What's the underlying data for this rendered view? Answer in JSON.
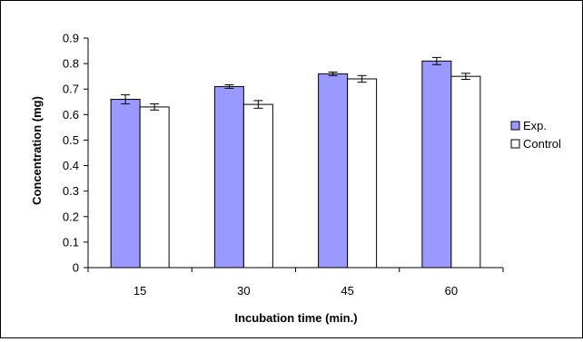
{
  "chart_data": {
    "type": "bar",
    "title": "",
    "xlabel": "Incubation time (min.)",
    "ylabel": "Concentration (mg)",
    "categories": [
      "15",
      "30",
      "45",
      "60"
    ],
    "ylim": [
      0,
      0.9
    ],
    "yticks": [
      0,
      0.1,
      0.2,
      0.3,
      0.4,
      0.5,
      0.6,
      0.7,
      0.8,
      0.9
    ],
    "ytick_labels": [
      "0",
      "0.1",
      "0.2",
      "0.3",
      "0.4",
      "0.5",
      "0.6",
      "0.7",
      "0.8",
      "0.9"
    ],
    "grid": false,
    "legend_position": "right",
    "error_bars": true,
    "series": [
      {
        "name": "Exp.",
        "color": "#9999ff",
        "values": [
          0.66,
          0.71,
          0.76,
          0.81
        ],
        "errors": [
          0.018,
          0.007,
          0.007,
          0.014
        ]
      },
      {
        "name": "Control",
        "color": "#ffffff",
        "values": [
          0.63,
          0.64,
          0.74,
          0.75
        ],
        "errors": [
          0.012,
          0.015,
          0.013,
          0.012
        ]
      }
    ]
  }
}
